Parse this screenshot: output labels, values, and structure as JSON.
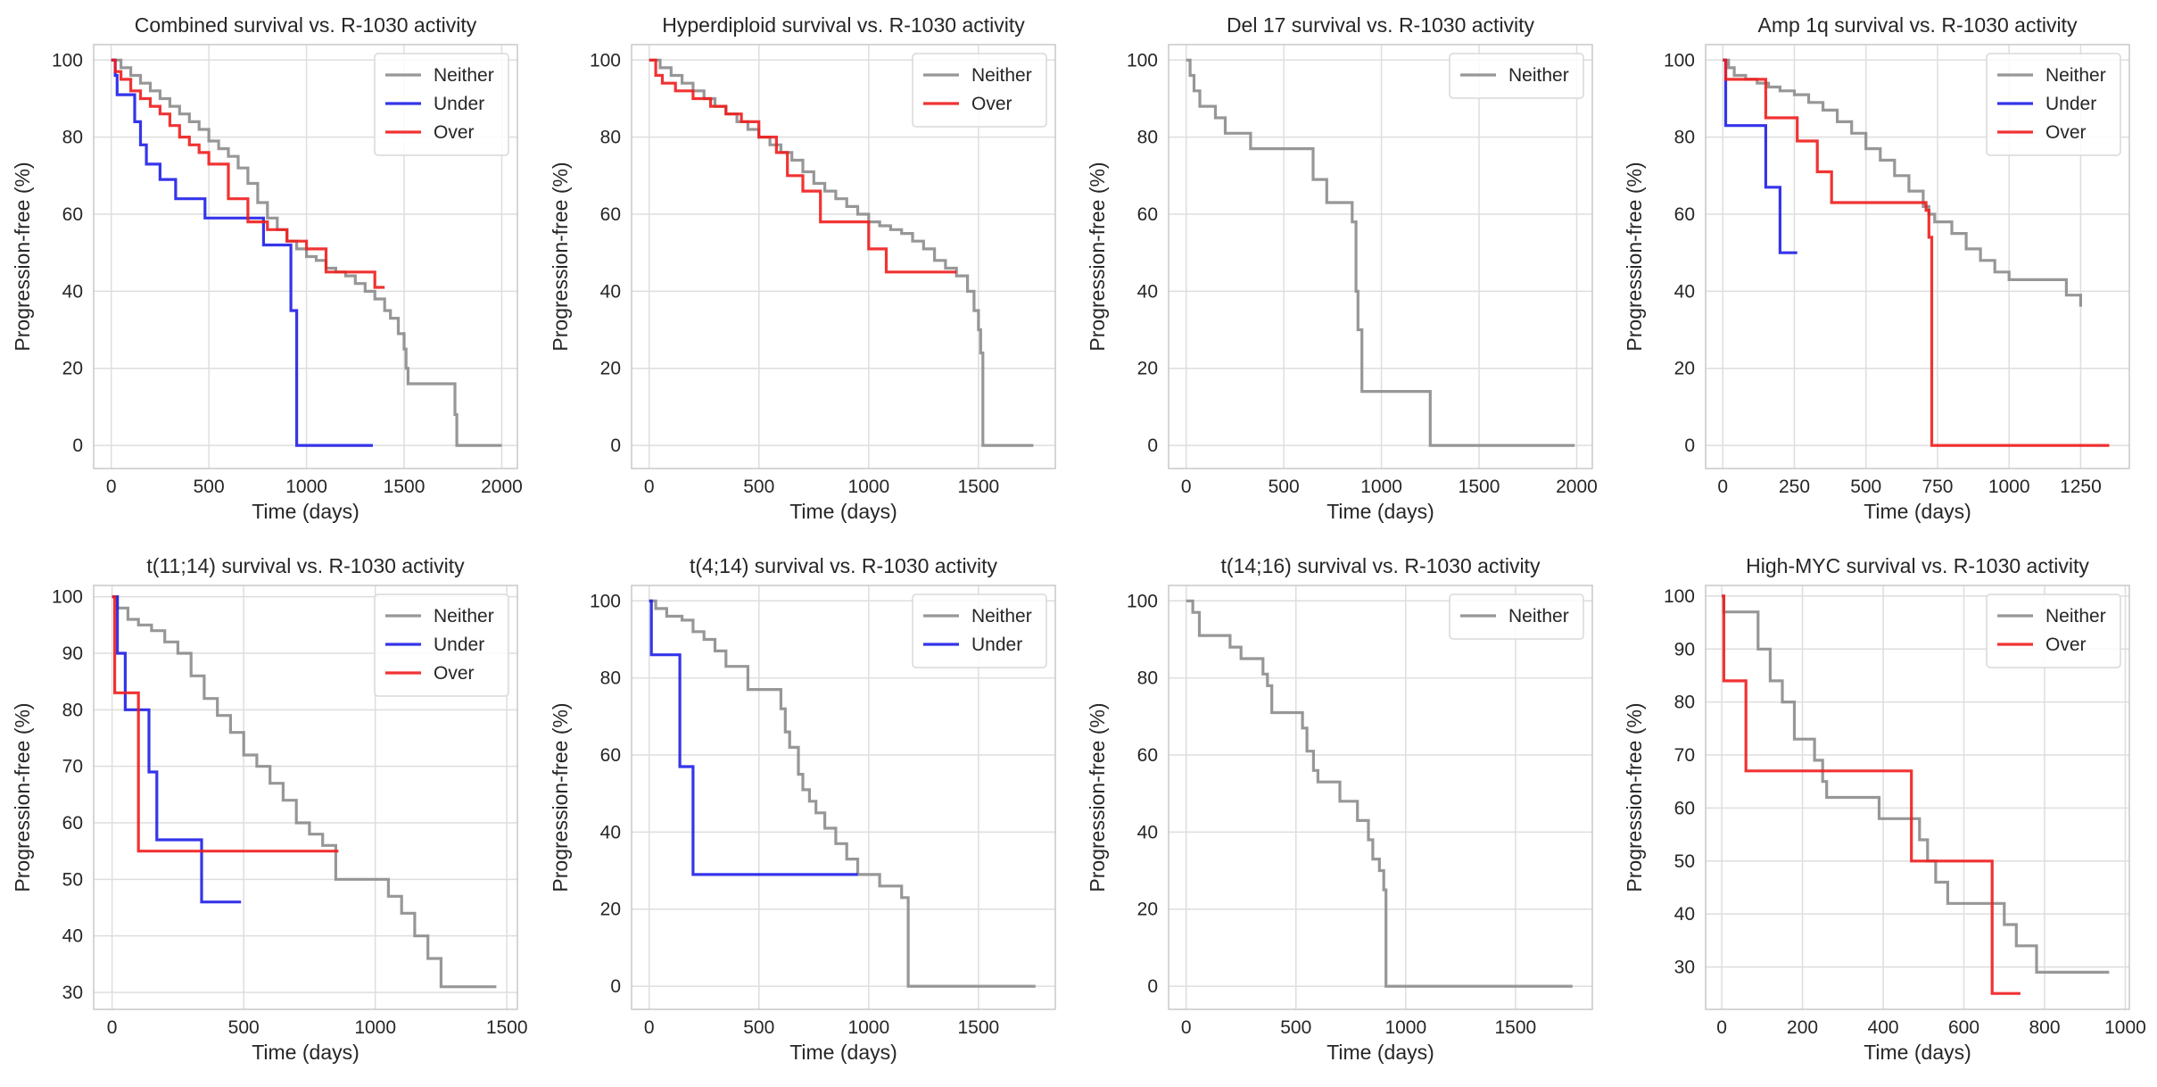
{
  "chart_data": [
    {
      "type": "line",
      "step": true,
      "title": "Combined survival vs. R-1030 activity",
      "xlabel": "Time (days)",
      "ylabel": "Progression-free (%)",
      "xlim": [
        -90,
        2080
      ],
      "ylim": [
        -6,
        104
      ],
      "xticks": [
        0,
        500,
        1000,
        1500,
        2000
      ],
      "yticks": [
        0,
        20,
        40,
        60,
        80,
        100
      ],
      "legend": [
        "Neither",
        "Under",
        "Over"
      ],
      "series": [
        {
          "name": "Neither",
          "x": [
            0,
            50,
            100,
            150,
            200,
            250,
            300,
            350,
            400,
            450,
            500,
            550,
            600,
            650,
            700,
            750,
            800,
            850,
            900,
            950,
            1000,
            1050,
            1100,
            1150,
            1200,
            1250,
            1300,
            1350,
            1400,
            1430,
            1470,
            1500,
            1510,
            1520,
            1750,
            1760,
            1770,
            2000
          ],
          "y": [
            100,
            98,
            96,
            94,
            92,
            90,
            88,
            86,
            84,
            82,
            79,
            77,
            75,
            72,
            68,
            63,
            59,
            56,
            53,
            51,
            49,
            48,
            46,
            45,
            44,
            42,
            40,
            38,
            35,
            33,
            29,
            25,
            20,
            16,
            16,
            8,
            0,
            0
          ]
        },
        {
          "name": "Under",
          "x": [
            0,
            20,
            30,
            120,
            150,
            180,
            250,
            330,
            480,
            780,
            920,
            950,
            1340
          ],
          "y": [
            100,
            96,
            91,
            84,
            78,
            73,
            69,
            64,
            59,
            52,
            35,
            0,
            0
          ]
        },
        {
          "name": "Over",
          "x": [
            0,
            20,
            50,
            100,
            150,
            200,
            250,
            300,
            350,
            400,
            450,
            500,
            600,
            700,
            800,
            900,
            1000,
            1100,
            1350,
            1400
          ],
          "y": [
            100,
            97,
            95,
            92,
            90,
            88,
            86,
            83,
            80,
            78,
            76,
            73,
            64,
            58,
            56,
            53,
            51,
            45,
            41,
            41
          ]
        }
      ]
    },
    {
      "type": "line",
      "step": true,
      "title": "Hyperdiploid survival vs. R-1030 activity",
      "xlabel": "Time (days)",
      "ylabel": "Progression-free (%)",
      "xlim": [
        -80,
        1850
      ],
      "ylim": [
        -6,
        104
      ],
      "xticks": [
        0,
        500,
        1000,
        1500
      ],
      "yticks": [
        0,
        20,
        40,
        60,
        80,
        100
      ],
      "legend": [
        "Neither",
        "Over"
      ],
      "series": [
        {
          "name": "Neither",
          "x": [
            0,
            50,
            100,
            150,
            200,
            250,
            300,
            350,
            400,
            450,
            500,
            550,
            600,
            650,
            700,
            750,
            800,
            850,
            900,
            950,
            1000,
            1050,
            1100,
            1150,
            1200,
            1250,
            1300,
            1350,
            1400,
            1450,
            1480,
            1500,
            1510,
            1520,
            1750
          ],
          "y": [
            100,
            98,
            96,
            94,
            92,
            90,
            88,
            86,
            84,
            82,
            80,
            78,
            76,
            74,
            71,
            68,
            66,
            64,
            62,
            60,
            58,
            57,
            56,
            55,
            53,
            51,
            48,
            46,
            44,
            40,
            35,
            30,
            24,
            0,
            0
          ]
        },
        {
          "name": "Over",
          "x": [
            0,
            30,
            60,
            120,
            200,
            280,
            350,
            420,
            500,
            580,
            630,
            700,
            780,
            900,
            1000,
            1080,
            1400
          ],
          "y": [
            100,
            96,
            94,
            92,
            90,
            88,
            86,
            84,
            80,
            76,
            70,
            66,
            58,
            58,
            51,
            45,
            45
          ]
        }
      ]
    },
    {
      "type": "line",
      "step": true,
      "title": "Del 17 survival vs. R-1030 activity",
      "xlabel": "Time (days)",
      "ylabel": "Progression-free (%)",
      "xlim": [
        -90,
        2080
      ],
      "ylim": [
        -6,
        104
      ],
      "xticks": [
        0,
        500,
        1000,
        1500,
        2000
      ],
      "yticks": [
        0,
        20,
        40,
        60,
        80,
        100
      ],
      "legend": [
        "Neither"
      ],
      "series": [
        {
          "name": "Neither",
          "x": [
            0,
            20,
            40,
            70,
            150,
            200,
            330,
            570,
            650,
            720,
            850,
            870,
            880,
            900,
            1250,
            1990
          ],
          "y": [
            100,
            96,
            92,
            88,
            85,
            81,
            77,
            77,
            69,
            63,
            58,
            40,
            30,
            14,
            0,
            0
          ]
        }
      ]
    },
    {
      "type": "line",
      "step": true,
      "title": "Amp 1q survival vs. R-1030 activity",
      "xlabel": "Time (days)",
      "ylabel": "Progression-free (%)",
      "xlim": [
        -60,
        1420
      ],
      "ylim": [
        -6,
        104
      ],
      "xticks": [
        0,
        250,
        500,
        750,
        1000,
        1250
      ],
      "yticks": [
        0,
        20,
        40,
        60,
        80,
        100
      ],
      "legend": [
        "Neither",
        "Under",
        "Over"
      ],
      "series": [
        {
          "name": "Neither",
          "x": [
            0,
            20,
            40,
            80,
            120,
            160,
            200,
            250,
            300,
            350,
            400,
            450,
            500,
            550,
            600,
            650,
            700,
            720,
            740,
            800,
            850,
            900,
            950,
            1000,
            1150,
            1200,
            1250
          ],
          "y": [
            100,
            98,
            96,
            95,
            94,
            93,
            92,
            91,
            89,
            87,
            84,
            81,
            77,
            74,
            70,
            66,
            62,
            60,
            58,
            55,
            51,
            48,
            45,
            43,
            43,
            39,
            36
          ]
        },
        {
          "name": "Under",
          "x": [
            0,
            10,
            150,
            200,
            260
          ],
          "y": [
            100,
            83,
            67,
            50,
            50
          ]
        },
        {
          "name": "Over",
          "x": [
            0,
            10,
            150,
            260,
            330,
            380,
            700,
            710,
            720,
            730,
            1350
          ],
          "y": [
            100,
            95,
            85,
            79,
            71,
            63,
            63,
            61,
            54,
            0,
            0
          ]
        }
      ]
    },
    {
      "type": "line",
      "step": true,
      "title": "t(11;14) survival vs. R-1030 activity",
      "xlabel": "Time (days)",
      "ylabel": "Progression-free (%)",
      "xlim": [
        -70,
        1540
      ],
      "ylim": [
        27,
        102
      ],
      "xticks": [
        0,
        500,
        1000,
        1500
      ],
      "yticks": [
        30,
        40,
        50,
        60,
        70,
        80,
        90,
        100
      ],
      "legend": [
        "Neither",
        "Under",
        "Over"
      ],
      "series": [
        {
          "name": "Neither",
          "x": [
            0,
            20,
            60,
            100,
            150,
            200,
            250,
            300,
            350,
            400,
            450,
            500,
            550,
            600,
            650,
            700,
            750,
            800,
            850,
            1050,
            1100,
            1150,
            1200,
            1250,
            1460
          ],
          "y": [
            100,
            98,
            96,
            95,
            94,
            92,
            90,
            86,
            82,
            79,
            76,
            72,
            70,
            67,
            64,
            60,
            58,
            56,
            50,
            47,
            44,
            40,
            36,
            31,
            31
          ]
        },
        {
          "name": "Under",
          "x": [
            0,
            20,
            50,
            140,
            170,
            340,
            490
          ],
          "y": [
            100,
            90,
            80,
            69,
            57,
            46,
            46
          ]
        },
        {
          "name": "Over",
          "x": [
            0,
            10,
            100,
            860
          ],
          "y": [
            100,
            83,
            55,
            55
          ]
        }
      ]
    },
    {
      "type": "line",
      "step": true,
      "title": "t(4;14) survival vs. R-1030 activity",
      "xlabel": "Time (days)",
      "ylabel": "Progression-free (%)",
      "xlim": [
        -80,
        1850
      ],
      "ylim": [
        -6,
        104
      ],
      "xticks": [
        0,
        500,
        1000,
        1500
      ],
      "yticks": [
        0,
        20,
        40,
        60,
        80,
        100
      ],
      "legend": [
        "Neither",
        "Under"
      ],
      "series": [
        {
          "name": "Neither",
          "x": [
            0,
            30,
            80,
            150,
            200,
            250,
            300,
            350,
            450,
            600,
            620,
            640,
            680,
            700,
            730,
            760,
            800,
            850,
            900,
            950,
            1050,
            1150,
            1180,
            1760
          ],
          "y": [
            100,
            98,
            96,
            95,
            92,
            90,
            87,
            83,
            77,
            72,
            66,
            62,
            55,
            51,
            48,
            45,
            41,
            37,
            33,
            29,
            26,
            23,
            0,
            0
          ]
        },
        {
          "name": "Under",
          "x": [
            0,
            10,
            140,
            200,
            950
          ],
          "y": [
            100,
            86,
            57,
            29,
            29
          ]
        }
      ]
    },
    {
      "type": "line",
      "step": true,
      "title": "t(14;16) survival vs. R-1030 activity",
      "xlabel": "Time (days)",
      "ylabel": "Progression-free (%)",
      "xlim": [
        -80,
        1850
      ],
      "ylim": [
        -6,
        104
      ],
      "xticks": [
        0,
        500,
        1000,
        1500
      ],
      "yticks": [
        0,
        20,
        40,
        60,
        80,
        100
      ],
      "legend": [
        "Neither"
      ],
      "series": [
        {
          "name": "Neither",
          "x": [
            0,
            30,
            60,
            200,
            250,
            350,
            370,
            390,
            530,
            550,
            580,
            600,
            700,
            780,
            830,
            850,
            880,
            900,
            910,
            1760
          ],
          "y": [
            100,
            97,
            91,
            88,
            85,
            81,
            78,
            71,
            67,
            61,
            56,
            53,
            48,
            43,
            38,
            33,
            30,
            25,
            0,
            0
          ]
        }
      ]
    },
    {
      "type": "line",
      "step": true,
      "title": "High-MYC survival vs. R-1030 activity",
      "xlabel": "Time (days)",
      "ylabel": "Progression-free (%)",
      "xlim": [
        -40,
        1010
      ],
      "ylim": [
        22,
        102
      ],
      "xticks": [
        0,
        200,
        400,
        600,
        800,
        1000
      ],
      "yticks": [
        30,
        40,
        50,
        60,
        70,
        80,
        90,
        100
      ],
      "legend": [
        "Neither",
        "Over"
      ],
      "series": [
        {
          "name": "Neither",
          "x": [
            0,
            5,
            90,
            120,
            150,
            180,
            220,
            230,
            250,
            260,
            390,
            490,
            510,
            530,
            560,
            700,
            730,
            780,
            960
          ],
          "y": [
            100,
            97,
            90,
            84,
            80,
            73,
            73,
            69,
            65,
            62,
            58,
            54,
            50,
            46,
            42,
            38,
            34,
            29,
            29
          ]
        },
        {
          "name": "Over",
          "x": [
            0,
            5,
            60,
            470,
            480,
            670,
            740
          ],
          "y": [
            100,
            84,
            67,
            50,
            50,
            25,
            25
          ]
        }
      ]
    }
  ],
  "colors": {
    "Neither": "#8c8c8c",
    "Under": "#1f1fe8",
    "Over": "#f01d1d",
    "grid": "#dedede",
    "frame": "#c8c8c8",
    "text": "#262626"
  }
}
